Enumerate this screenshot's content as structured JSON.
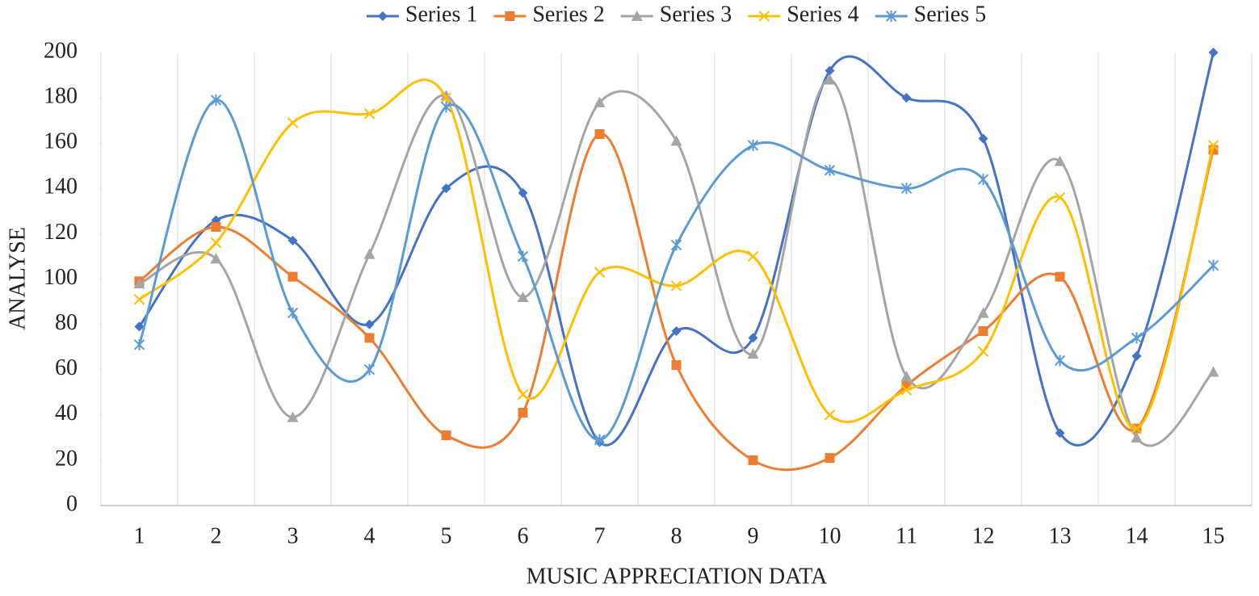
{
  "chart_data": {
    "type": "line",
    "x_label": "MUSIC APPRECIATION DATA",
    "y_label": "ANALYSE",
    "categories": [
      "1",
      "2",
      "3",
      "4",
      "5",
      "6",
      "7",
      "8",
      "9",
      "10",
      "11",
      "12",
      "13",
      "14",
      "15"
    ],
    "series": [
      {
        "name": "Series 1",
        "color": "#4472c4",
        "marker": "diamond",
        "values": [
          79,
          126,
          117,
          80,
          140,
          138,
          28,
          77,
          74,
          192,
          180,
          162,
          32,
          66,
          200
        ]
      },
      {
        "name": "Series 2",
        "color": "#ed7d31",
        "marker": "square",
        "values": [
          99,
          123,
          101,
          74,
          31,
          41,
          164,
          62,
          20,
          21,
          53,
          77,
          101,
          34,
          157
        ]
      },
      {
        "name": "Series 3",
        "color": "#a5a5a5",
        "marker": "triangle",
        "values": [
          98,
          109,
          39,
          111,
          181,
          92,
          178,
          161,
          67,
          188,
          57,
          85,
          152,
          30,
          59
        ]
      },
      {
        "name": "Series 4",
        "color": "#ffc000",
        "marker": "x",
        "values": [
          91,
          116,
          169,
          173,
          180,
          49,
          103,
          97,
          110,
          40,
          51,
          68,
          136,
          34,
          159
        ]
      },
      {
        "name": "Series 5",
        "color": "#5b9bd5",
        "marker": "asterisk",
        "values": [
          71,
          179,
          85,
          60,
          176,
          110,
          29,
          115,
          159,
          148,
          140,
          144,
          64,
          74,
          106
        ]
      }
    ],
    "ylim": [
      0,
      200
    ],
    "yticks": [
      0,
      20,
      40,
      60,
      80,
      100,
      120,
      140,
      160,
      180,
      200
    ],
    "smooth": true,
    "legend": "top"
  }
}
